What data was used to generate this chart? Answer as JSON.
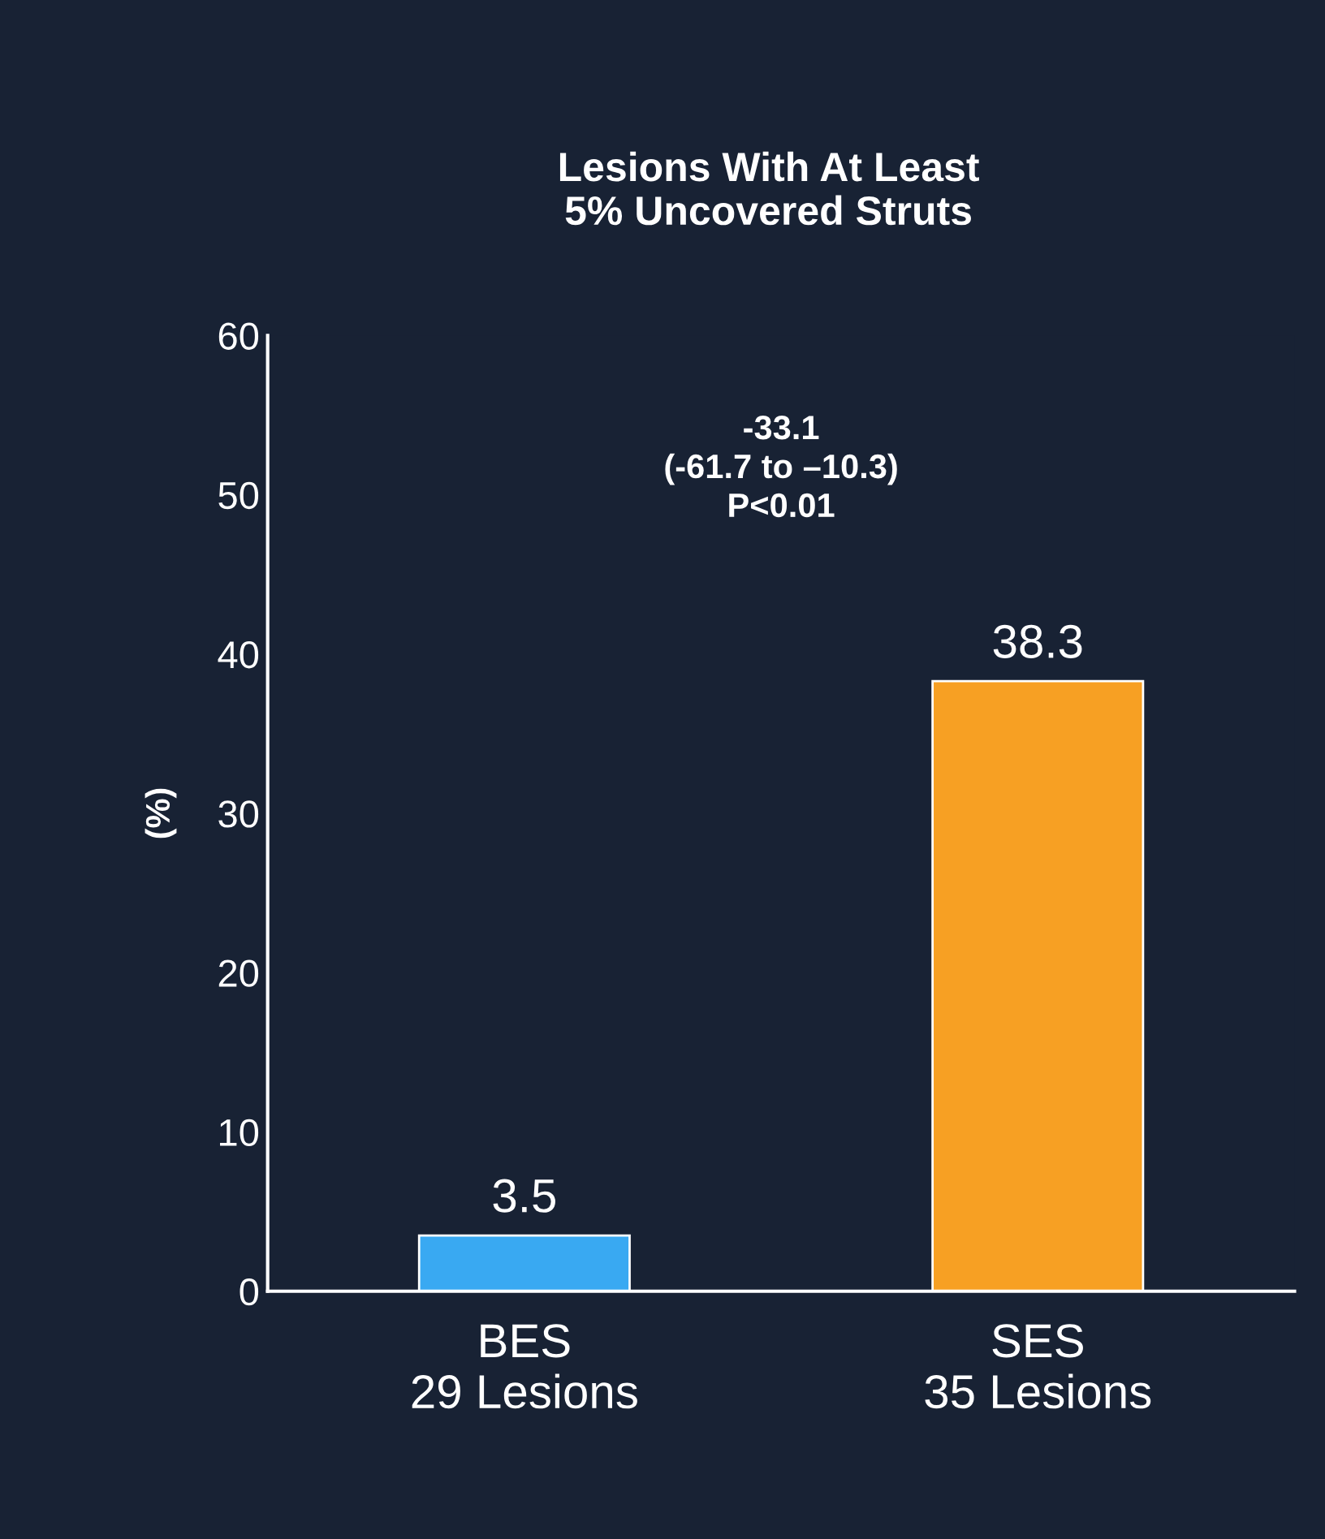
{
  "chart_data": {
    "type": "bar",
    "title": "Lesions With At Least\n5% Uncovered Struts",
    "ylabel": "(%)",
    "categories": [
      "BES\n29 Lesions",
      "SES\n35 Lesions"
    ],
    "values": [
      3.5,
      38.3
    ],
    "colors": [
      "#39a9f2",
      "#f7a023"
    ],
    "ylim": [
      0,
      60
    ],
    "yticks": [
      0,
      10,
      20,
      30,
      40,
      50,
      60
    ],
    "grid": false,
    "data_labels": true,
    "legend": false,
    "annotations": [
      "-33.1\n(-61.7 to –10.3)\nP<0.01"
    ]
  }
}
